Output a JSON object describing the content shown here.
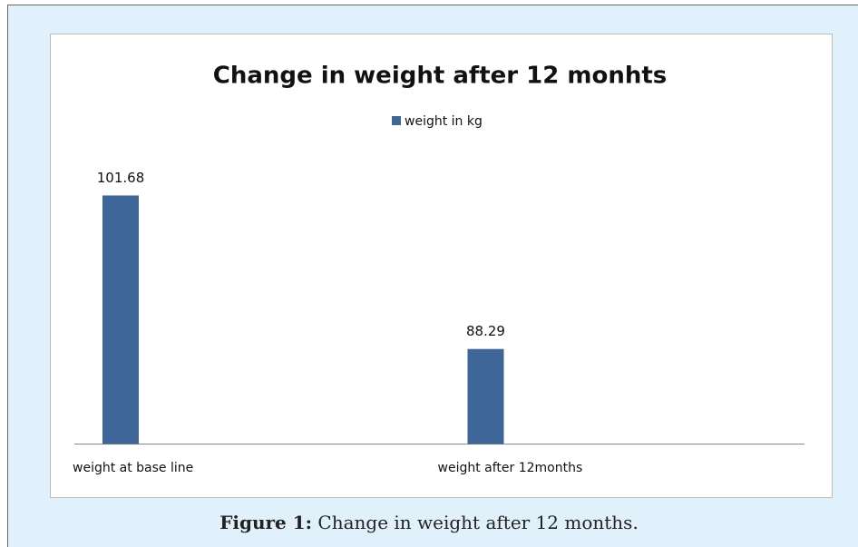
{
  "chart_data": {
    "type": "bar",
    "title": "Change in weight after 12 monhts",
    "categories": [
      "weight at base line",
      "weight after 12months"
    ],
    "series": [
      {
        "name": "weight in kg",
        "color": "#3f6698",
        "values": [
          101.68,
          88.29
        ]
      }
    ],
    "ylim": [
      80,
      105
    ],
    "caption": {
      "label": "Figure 1:",
      "text": "Change in weight after 12 months."
    }
  }
}
